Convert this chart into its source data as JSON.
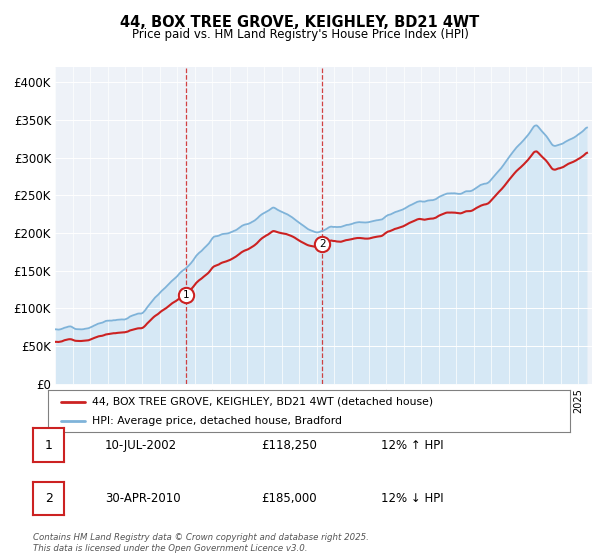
{
  "title": "44, BOX TREE GROVE, KEIGHLEY, BD21 4WT",
  "subtitle": "Price paid vs. HM Land Registry's House Price Index (HPI)",
  "ylim": [
    0,
    420000
  ],
  "yticks": [
    0,
    50000,
    100000,
    150000,
    200000,
    250000,
    300000,
    350000,
    400000
  ],
  "ytick_labels": [
    "£0",
    "£50K",
    "£100K",
    "£150K",
    "£200K",
    "£250K",
    "£300K",
    "£350K",
    "£400K"
  ],
  "hpi_color": "#7fb3d9",
  "hpi_fill_color": "#d6e8f5",
  "price_color": "#cc2222",
  "marker1_x": 2002.53,
  "marker1_y": 118250,
  "marker2_x": 2010.33,
  "marker2_y": 185000,
  "vline_color": "#cc2222",
  "legend_label1": "44, BOX TREE GROVE, KEIGHLEY, BD21 4WT (detached house)",
  "legend_label2": "HPI: Average price, detached house, Bradford",
  "table_row1": [
    "1",
    "10-JUL-2002",
    "£118,250",
    "12% ↑ HPI"
  ],
  "table_row2": [
    "2",
    "30-APR-2010",
    "£185,000",
    "12% ↓ HPI"
  ],
  "footer": "Contains HM Land Registry data © Crown copyright and database right 2025.\nThis data is licensed under the Open Government Licence v3.0.",
  "bg_color": "#eef2f8",
  "xlim_start": 1995,
  "xlim_end": 2025.8
}
